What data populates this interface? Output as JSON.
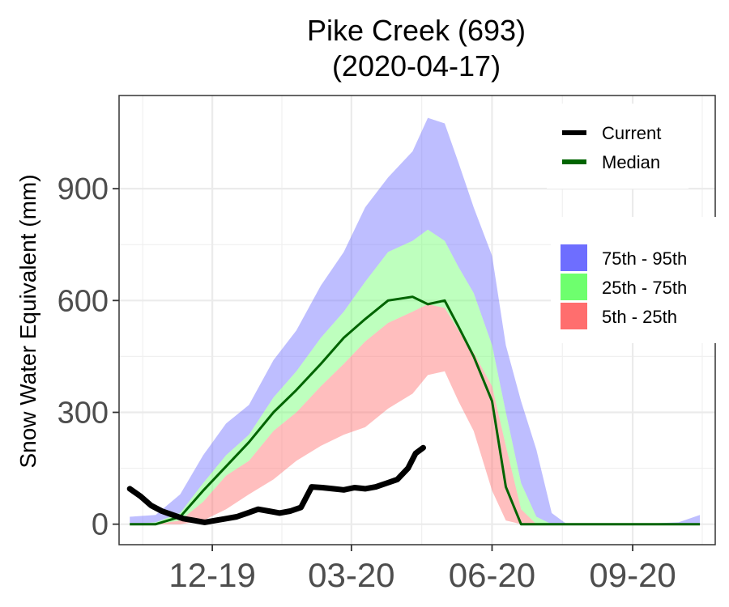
{
  "chart_data": {
    "type": "area",
    "title": "Pike Creek (693)",
    "subtitle": "(2020-04-17)",
    "xlabel": "",
    "ylabel": "Snow Water Equivalent (mm)",
    "x_ticks": [
      "12-19",
      "03-20",
      "06-20",
      "09-20"
    ],
    "y_ticks": [
      0,
      300,
      600,
      900
    ],
    "ylim": [
      -55,
      1150
    ],
    "xlim": [
      "2019-10-01",
      "2020-10-25"
    ],
    "grid": true,
    "colors": {
      "p75_95": "#6e6eff",
      "p25_75": "#6eff6e",
      "p5_25": "#ff6e6e",
      "median": "#006400",
      "current": "#000000"
    },
    "legend_lines": [
      {
        "key": "current",
        "label": "Current"
      },
      {
        "key": "median",
        "label": "Median"
      }
    ],
    "legend_bands": [
      {
        "key": "p75_95",
        "label": "75th - 95th"
      },
      {
        "key": "p25_75",
        "label": "25th - 75th"
      },
      {
        "key": "p5_25",
        "label": "5th - 25th"
      }
    ],
    "bands": {
      "x": [
        "2019-10-08",
        "2019-10-25",
        "2019-11-10",
        "2019-11-25",
        "2019-12-10",
        "2019-12-25",
        "2020-01-10",
        "2020-01-25",
        "2020-02-10",
        "2020-02-25",
        "2020-03-10",
        "2020-03-25",
        "2020-04-10",
        "2020-04-20",
        "2020-05-01",
        "2020-05-10",
        "2020-05-20",
        "2020-06-01",
        "2020-06-10",
        "2020-06-20",
        "2020-06-30",
        "2020-07-10",
        "2020-07-20",
        "2020-08-01",
        "2020-09-01",
        "2020-10-01",
        "2020-10-15"
      ],
      "p95": [
        20,
        25,
        80,
        185,
        270,
        320,
        440,
        520,
        640,
        730,
        850,
        930,
        1000,
        1090,
        1075,
        970,
        850,
        720,
        480,
        330,
        200,
        30,
        0,
        0,
        0,
        5,
        25
      ],
      "p75": [
        0,
        5,
        30,
        110,
        185,
        240,
        340,
        410,
        500,
        570,
        650,
        730,
        760,
        790,
        760,
        690,
        620,
        480,
        300,
        110,
        20,
        0,
        0,
        0,
        0,
        0,
        0
      ],
      "p25": [
        0,
        0,
        10,
        60,
        130,
        170,
        250,
        300,
        370,
        430,
        490,
        540,
        570,
        590,
        580,
        520,
        460,
        370,
        210,
        40,
        0,
        0,
        0,
        0,
        0,
        0,
        0
      ],
      "p5": [
        0,
        0,
        0,
        10,
        40,
        80,
        120,
        170,
        210,
        240,
        260,
        310,
        350,
        400,
        410,
        330,
        250,
        90,
        10,
        0,
        0,
        0,
        0,
        0,
        0,
        0,
        0
      ],
      "median": [
        0,
        0,
        20,
        90,
        155,
        220,
        300,
        360,
        430,
        500,
        550,
        600,
        610,
        590,
        600,
        530,
        450,
        330,
        100,
        0,
        0,
        0,
        0,
        0,
        0,
        0,
        0
      ]
    },
    "current": {
      "x": [
        "2019-10-08",
        "2019-10-15",
        "2019-10-22",
        "2019-10-29",
        "2019-11-05",
        "2019-11-12",
        "2019-11-19",
        "2019-11-26",
        "2019-12-03",
        "2019-12-10",
        "2019-12-17",
        "2019-12-24",
        "2019-12-31",
        "2020-01-07",
        "2020-01-14",
        "2020-01-21",
        "2020-01-28",
        "2020-02-04",
        "2020-02-11",
        "2020-02-18",
        "2020-02-25",
        "2020-03-03",
        "2020-03-10",
        "2020-03-17",
        "2020-03-24",
        "2020-03-31",
        "2020-04-07",
        "2020-04-12",
        "2020-04-17"
      ],
      "y": [
        95,
        75,
        50,
        35,
        25,
        15,
        10,
        5,
        10,
        15,
        20,
        30,
        40,
        35,
        30,
        35,
        45,
        100,
        98,
        95,
        92,
        98,
        95,
        100,
        110,
        120,
        150,
        190,
        205
      ]
    }
  }
}
